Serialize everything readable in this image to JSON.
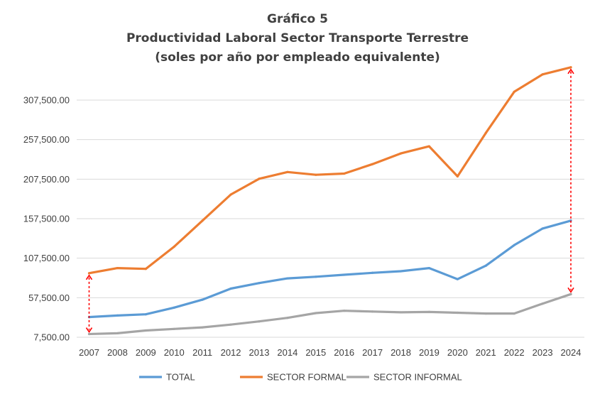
{
  "chart_data": {
    "type": "line",
    "title": "Gráfico 5",
    "subtitle": "Productividad Laboral Sector Transporte Terrestre",
    "subtitle2": "(soles por año por empleado equivalente)",
    "xlabel": "",
    "ylabel": "",
    "categories": [
      "2007",
      "2008",
      "2009",
      "2010",
      "2011",
      "2012",
      "2013",
      "2014",
      "2015",
      "2016",
      "2017",
      "2018",
      "2019",
      "2020",
      "2021",
      "2022",
      "2023",
      "2024"
    ],
    "y_ticks": [
      "7,500.00",
      "57,500.00",
      "107,500.00",
      "157,500.00",
      "207,500.00",
      "257,500.00",
      "307,500.00"
    ],
    "ylim": [
      7500,
      320000
    ],
    "grid": true,
    "legend_position": "bottom",
    "series": [
      {
        "name": "TOTAL",
        "color": "#5b9bd5",
        "values": [
          33000,
          35000,
          36500,
          45000,
          55000,
          69000,
          76000,
          82000,
          84000,
          86500,
          89000,
          91000,
          95000,
          81000,
          98000,
          124000,
          145000,
          155000
        ]
      },
      {
        "name": "SECTOR FORMAL",
        "color": "#ed7d31",
        "values": [
          88500,
          95000,
          94000,
          122000,
          155000,
          188000,
          208000,
          216500,
          213000,
          214500,
          226500,
          240000,
          249000,
          211000,
          266000,
          318000,
          340000,
          349000
        ]
      },
      {
        "name": "SECTOR INFORMAL",
        "color": "#a5a5a5",
        "values": [
          11500,
          12500,
          16000,
          18000,
          20000,
          23500,
          27500,
          32000,
          38000,
          41000,
          40000,
          39000,
          39500,
          38500,
          37500,
          37500,
          50000,
          62000
        ]
      }
    ],
    "annotations": [
      {
        "type": "double-arrow",
        "x": "2007",
        "from": 88500,
        "to": 11500,
        "color": "#ff0000"
      },
      {
        "type": "double-arrow",
        "x": "2024",
        "from": 349000,
        "to": 62000,
        "color": "#ff0000"
      }
    ]
  }
}
